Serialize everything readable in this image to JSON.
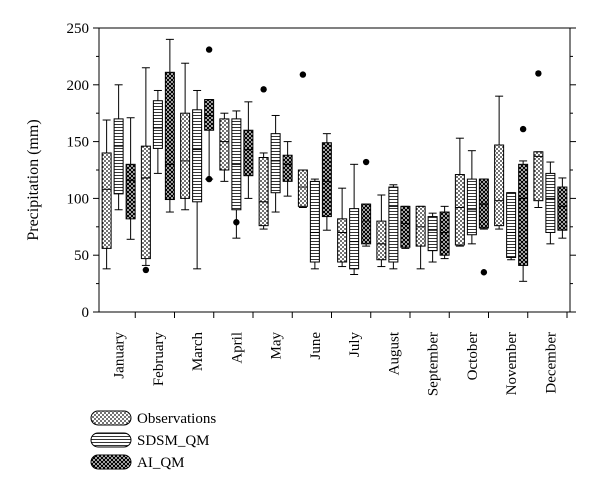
{
  "chart_data": {
    "type": "boxplot",
    "ylabel": "Precipitation (mm)",
    "ylim": [
      0,
      250
    ],
    "yticks": [
      0,
      50,
      100,
      150,
      200,
      250
    ],
    "categories": [
      "January",
      "February",
      "March",
      "April",
      "May",
      "June",
      "July",
      "August",
      "September",
      "October",
      "November",
      "December"
    ],
    "grid": false,
    "legend_position": "bottom-left",
    "series": [
      {
        "name": "Observations",
        "pattern": "dots",
        "boxes": [
          {
            "min": 38,
            "q1": 56,
            "median": 108,
            "q3": 140,
            "max": 169
          },
          {
            "min": 41,
            "q1": 47,
            "median": 118,
            "q3": 146,
            "max": 215,
            "outliers": [
              37
            ]
          },
          {
            "min": 90,
            "q1": 100,
            "median": 133,
            "q3": 175,
            "max": 219
          },
          {
            "min": 115,
            "q1": 125,
            "median": 150,
            "q3": 170,
            "max": 175
          },
          {
            "min": 73,
            "q1": 76,
            "median": 97,
            "q3": 136,
            "max": 140,
            "outliers": [
              196
            ]
          },
          {
            "min": 92,
            "q1": 93,
            "median": 110,
            "q3": 125,
            "max": 125,
            "outliers": [
              209
            ]
          },
          {
            "min": 40,
            "q1": 44,
            "median": 70,
            "q3": 82,
            "max": 109
          },
          {
            "min": 40,
            "q1": 46,
            "median": 60,
            "q3": 80,
            "max": 103
          },
          {
            "min": 38,
            "q1": 58,
            "median": 75,
            "q3": 93,
            "max": 93
          },
          {
            "min": 58,
            "q1": 59,
            "median": 92,
            "q3": 121,
            "max": 153
          },
          {
            "min": 73,
            "q1": 76,
            "median": 98,
            "q3": 147,
            "max": 190
          },
          {
            "min": 92,
            "q1": 98,
            "median": 137,
            "q3": 141,
            "max": 141,
            "outliers": [
              210
            ]
          }
        ]
      },
      {
        "name": "SDSM_QM",
        "pattern": "horizontal-lines",
        "boxes": [
          {
            "min": 90,
            "q1": 104,
            "median": 146,
            "q3": 170,
            "max": 200
          },
          {
            "min": 122,
            "q1": 144,
            "median": 162,
            "q3": 186,
            "max": 195
          },
          {
            "min": 38,
            "q1": 97,
            "median": 143,
            "q3": 178,
            "max": 195
          },
          {
            "min": 65,
            "q1": 90,
            "median": 130,
            "q3": 170,
            "max": 177,
            "outliers": [
              79
            ]
          },
          {
            "min": 88,
            "q1": 105,
            "median": 133,
            "q3": 157,
            "max": 173
          },
          {
            "min": 38,
            "q1": 44,
            "median": 70,
            "q3": 115,
            "max": 117
          },
          {
            "min": 33,
            "q1": 38,
            "median": 62,
            "q3": 91,
            "max": 130
          },
          {
            "min": 38,
            "q1": 44,
            "median": 93,
            "q3": 110,
            "max": 112
          },
          {
            "min": 44,
            "q1": 54,
            "median": 72,
            "q3": 84,
            "max": 87
          },
          {
            "min": 60,
            "q1": 68,
            "median": 90,
            "q3": 117,
            "max": 142
          },
          {
            "min": 46,
            "q1": 48,
            "median": 70,
            "q3": 105,
            "max": 105
          },
          {
            "min": 60,
            "q1": 70,
            "median": 100,
            "q3": 122,
            "max": 132
          }
        ]
      },
      {
        "name": "AI_QM",
        "pattern": "crosshatch",
        "boxes": [
          {
            "min": 64,
            "q1": 82,
            "median": 116,
            "q3": 130,
            "max": 171
          },
          {
            "min": 88,
            "q1": 99,
            "median": 130,
            "q3": 211,
            "max": 240
          },
          {
            "min": 117,
            "q1": 160,
            "median": 173,
            "q3": 187,
            "max": 187,
            "outliers": [
              231,
              117
            ]
          },
          {
            "min": 100,
            "q1": 120,
            "median": 143,
            "q3": 160,
            "max": 185
          },
          {
            "min": 102,
            "q1": 115,
            "median": 130,
            "q3": 138,
            "max": 150
          },
          {
            "min": 72,
            "q1": 84,
            "median": 115,
            "q3": 149,
            "max": 157
          },
          {
            "min": 58,
            "q1": 60,
            "median": 80,
            "q3": 95,
            "max": 95,
            "outliers": [
              132
            ]
          },
          {
            "min": 56,
            "q1": 57,
            "median": 78,
            "q3": 93,
            "max": 93
          },
          {
            "min": 47,
            "q1": 50,
            "median": 70,
            "q3": 88,
            "max": 93
          },
          {
            "min": 73,
            "q1": 74,
            "median": 95,
            "q3": 117,
            "max": 117,
            "outliers": [
              35
            ]
          },
          {
            "min": 27,
            "q1": 41,
            "median": 100,
            "q3": 130,
            "max": 133,
            "outliers": [
              161
            ]
          },
          {
            "min": 65,
            "q1": 72,
            "median": 93,
            "q3": 110,
            "max": 118
          }
        ]
      }
    ]
  }
}
